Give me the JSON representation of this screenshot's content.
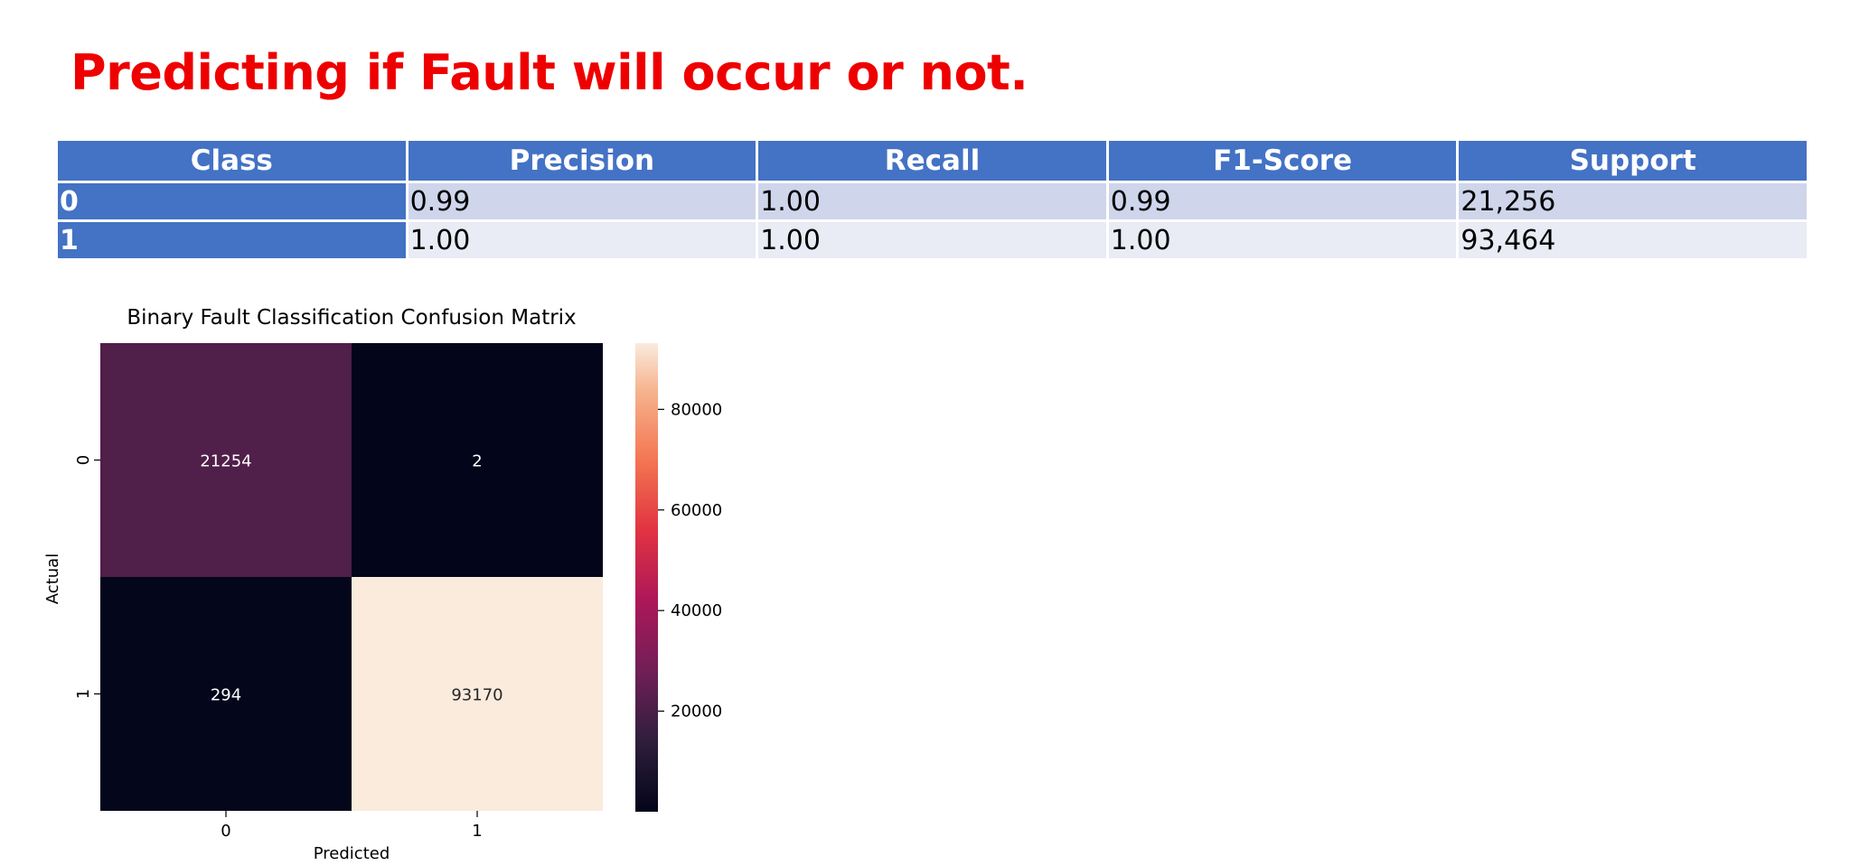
{
  "page": {
    "title": "Predicting if Fault will occur or not.",
    "title_color": "#ee0000"
  },
  "table": {
    "header_color": "#4472c4",
    "row_colors": [
      "#cfd5ea",
      "#e9ebf5"
    ],
    "columns": [
      "Class",
      "Precision",
      "Recall",
      "F1-Score",
      "Support"
    ],
    "rows": [
      [
        "0",
        "0.99",
        "1.00",
        "0.99",
        "21,256"
      ],
      [
        "1",
        "1.00",
        "1.00",
        "1.00",
        "93,464"
      ]
    ]
  },
  "chart_data": {
    "type": "heatmap",
    "title": "Binary Fault Classification Confusion Matrix",
    "xlabel": "Predicted",
    "ylabel": "Actual",
    "x_categories": [
      "0",
      "1"
    ],
    "y_categories": [
      "0",
      "1"
    ],
    "values": [
      [
        21254,
        2
      ],
      [
        294,
        93170
      ]
    ],
    "colormap": "rocket",
    "color_range": [
      2,
      93170
    ],
    "colorbar_ticks": [
      20000,
      40000,
      60000,
      80000
    ]
  }
}
